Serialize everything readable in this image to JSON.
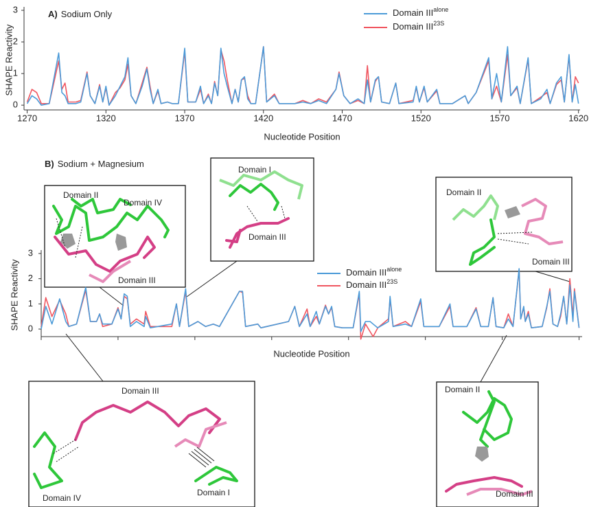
{
  "chart_data": [
    {
      "type": "line",
      "panel": "A)",
      "title": "Sodium Only",
      "x_label": "Nucleotide Position",
      "y_label": "SHAPE Reactivity",
      "xlim": [
        1268,
        1621
      ],
      "xticks": [
        1270,
        1320,
        1370,
        1420,
        1470,
        1520,
        1570,
        1620
      ],
      "xtick_labels": true,
      "ylim": [
        -0.15,
        3
      ],
      "yticks": [
        0,
        1,
        2,
        3
      ],
      "x": [
        1270,
        1273,
        1276,
        1279,
        1284,
        1290,
        1292,
        1294,
        1296,
        1301,
        1304,
        1308,
        1310,
        1313,
        1316,
        1318,
        1320,
        1322,
        1326,
        1329,
        1332,
        1334,
        1336,
        1339,
        1343,
        1346,
        1348,
        1350,
        1353,
        1355,
        1359,
        1362,
        1366,
        1370,
        1372,
        1377,
        1380,
        1382,
        1385,
        1387,
        1389,
        1391,
        1393,
        1395,
        1397,
        1400,
        1402,
        1404,
        1406,
        1408,
        1410,
        1412,
        1415,
        1420,
        1422,
        1427,
        1430,
        1440,
        1445,
        1450,
        1455,
        1460,
        1466,
        1468,
        1471,
        1475,
        1480,
        1484,
        1486,
        1488,
        1491,
        1493,
        1495,
        1500,
        1504,
        1506,
        1515,
        1517,
        1519,
        1522,
        1524,
        1530,
        1532,
        1540,
        1548,
        1550,
        1555,
        1563,
        1565,
        1568,
        1571,
        1575,
        1577,
        1581,
        1583,
        1588,
        1590,
        1596,
        1600,
        1602,
        1606,
        1609,
        1611,
        1614,
        1616,
        1618,
        1620
      ],
      "series": [
        {
          "name": "Domain III",
          "sup": "alone",
          "color": "#4a9ad8",
          "values": [
            0.05,
            0.3,
            0.2,
            0.0,
            0.05,
            1.65,
            0.4,
            0.3,
            0.05,
            0.05,
            0.1,
            1.0,
            0.3,
            0.05,
            0.6,
            0.1,
            0.6,
            0.0,
            0.3,
            0.6,
            0.9,
            1.5,
            0.3,
            0.05,
            0.6,
            1.15,
            0.5,
            0.05,
            0.5,
            0.05,
            0.1,
            0.05,
            0.05,
            1.8,
            0.1,
            0.1,
            0.6,
            0.05,
            0.3,
            0.05,
            0.7,
            0.3,
            1.8,
            1.0,
            0.6,
            0.05,
            0.5,
            0.1,
            0.8,
            0.9,
            0.2,
            0.05,
            0.05,
            1.85,
            0.1,
            0.3,
            0.05,
            0.05,
            0.1,
            0.05,
            0.15,
            0.05,
            0.5,
            1.0,
            0.3,
            0.05,
            0.2,
            0.05,
            0.8,
            0.1,
            0.8,
            0.9,
            0.1,
            0.05,
            0.7,
            0.05,
            0.1,
            0.6,
            0.1,
            0.6,
            0.1,
            0.5,
            0.05,
            0.05,
            0.3,
            0.05,
            0.4,
            1.5,
            0.2,
            1.0,
            0.1,
            1.85,
            0.3,
            0.6,
            0.05,
            1.5,
            0.05,
            0.2,
            0.5,
            0.05,
            0.7,
            0.9,
            0.1,
            1.6,
            0.1,
            0.65,
            0.05
          ]
        },
        {
          "name": "Domain III",
          "sup": "23S",
          "color": "#f0555f",
          "values": [
            0.1,
            0.5,
            0.4,
            0.05,
            0.05,
            1.4,
            0.5,
            0.7,
            0.1,
            0.1,
            0.15,
            1.05,
            0.3,
            0.05,
            0.65,
            0.1,
            0.55,
            0.0,
            0.4,
            0.55,
            0.8,
            1.3,
            0.3,
            0.05,
            0.7,
            1.2,
            0.6,
            0.05,
            0.45,
            0.05,
            0.1,
            0.05,
            0.05,
            1.7,
            0.1,
            0.1,
            0.5,
            0.05,
            0.35,
            0.05,
            0.75,
            0.3,
            1.75,
            1.4,
            0.8,
            0.05,
            0.5,
            0.1,
            0.8,
            0.85,
            0.3,
            0.05,
            0.05,
            1.85,
            0.1,
            0.35,
            0.05,
            0.05,
            0.15,
            0.05,
            0.2,
            0.1,
            0.5,
            1.05,
            0.3,
            0.05,
            0.15,
            0.05,
            1.25,
            0.1,
            0.75,
            0.9,
            0.1,
            0.05,
            0.7,
            0.05,
            0.15,
            0.55,
            0.1,
            0.55,
            0.1,
            0.45,
            0.05,
            0.05,
            0.3,
            0.05,
            0.4,
            1.4,
            0.2,
            0.6,
            0.1,
            1.6,
            0.3,
            0.55,
            0.05,
            1.45,
            0.05,
            0.25,
            0.4,
            0.05,
            0.65,
            0.8,
            0.1,
            1.55,
            0.1,
            0.9,
            0.7
          ]
        }
      ]
    },
    {
      "type": "line",
      "panel": "B)",
      "title": "Sodium + Magnesium",
      "x_label": "Nucleotide Position",
      "y_label": "SHAPE Reactivity",
      "xlim": [
        1270,
        1622
      ],
      "xticks": [
        1270,
        1320,
        1370,
        1420,
        1470,
        1520,
        1570,
        1620
      ],
      "xtick_labels": false,
      "ylim": [
        -0.3,
        3
      ],
      "yticks": [
        0,
        1,
        2,
        3
      ],
      "x": [
        1270,
        1273,
        1277,
        1282,
        1286,
        1288,
        1293,
        1299,
        1302,
        1306,
        1308,
        1310,
        1316,
        1320,
        1322,
        1324,
        1326,
        1328,
        1332,
        1337,
        1338,
        1341,
        1355,
        1358,
        1360,
        1364,
        1366,
        1372,
        1377,
        1382,
        1386,
        1399,
        1401,
        1403,
        1411,
        1413,
        1431,
        1435,
        1438,
        1443,
        1445,
        1449,
        1451,
        1455,
        1457,
        1459,
        1461,
        1466,
        1473,
        1477,
        1478,
        1481,
        1484,
        1486,
        1489,
        1496,
        1497,
        1499,
        1507,
        1511,
        1517,
        1519,
        1529,
        1536,
        1538,
        1547,
        1553,
        1556,
        1561,
        1564,
        1566,
        1571,
        1574,
        1577,
        1581,
        1582,
        1584,
        1585,
        1587,
        1589,
        1596,
        1599,
        1601,
        1603,
        1606,
        1608,
        1610,
        1612,
        1614,
        1616,
        1617,
        1620
      ],
      "series": [
        {
          "name": "Domain III",
          "sup": "alone",
          "color": "#4a9ad8",
          "values": [
            0.0,
            0.9,
            0.2,
            1.2,
            0.3,
            0.1,
            0.2,
            1.65,
            0.3,
            0.3,
            0.6,
            0.2,
            0.2,
            0.8,
            0.4,
            1.4,
            1.3,
            0.1,
            0.3,
            0.1,
            0.5,
            0.05,
            0.2,
            1.0,
            0.1,
            1.6,
            0.1,
            0.3,
            0.1,
            0.2,
            0.1,
            1.5,
            1.5,
            0.1,
            0.2,
            0.05,
            0.3,
            0.9,
            0.1,
            0.6,
            0.1,
            0.7,
            0.2,
            0.9,
            0.6,
            0.9,
            0.1,
            0.05,
            0.05,
            1.5,
            -0.1,
            0.3,
            0.3,
            0.2,
            0.05,
            0.3,
            1.3,
            0.1,
            0.2,
            0.1,
            1.2,
            0.1,
            0.1,
            1.0,
            0.1,
            0.1,
            0.8,
            0.1,
            0.1,
            1.25,
            0.1,
            0.05,
            0.4,
            0.1,
            2.4,
            0.4,
            0.9,
            0.3,
            0.6,
            0.05,
            0.1,
            0.9,
            1.5,
            0.2,
            0.1,
            0.6,
            1.3,
            0.2,
            1.75,
            0.3,
            1.5,
            0.05
          ]
        },
        {
          "name": "Domain III",
          "sup": "23S",
          "color": "#f0555f",
          "values": [
            0.1,
            1.25,
            0.5,
            1.15,
            0.6,
            0.1,
            0.2,
            1.55,
            0.3,
            0.3,
            0.6,
            0.1,
            0.2,
            0.85,
            0.4,
            1.3,
            1.2,
            0.2,
            0.4,
            0.2,
            0.7,
            0.1,
            0.1,
            1.0,
            0.1,
            1.5,
            0.1,
            0.3,
            0.1,
            0.2,
            0.1,
            1.5,
            1.45,
            0.1,
            0.2,
            0.05,
            0.3,
            0.9,
            0.1,
            0.8,
            0.1,
            0.5,
            0.2,
            0.95,
            0.6,
            0.85,
            0.1,
            0.05,
            0.05,
            1.4,
            -0.4,
            0.2,
            -0.1,
            -0.3,
            0.05,
            0.4,
            1.2,
            0.1,
            0.3,
            0.1,
            1.1,
            0.1,
            0.1,
            0.9,
            0.1,
            0.1,
            0.85,
            0.1,
            0.1,
            1.25,
            0.1,
            0.05,
            0.6,
            0.1,
            2.35,
            0.4,
            0.85,
            0.3,
            0.7,
            0.05,
            0.1,
            0.85,
            1.6,
            0.2,
            0.1,
            0.5,
            1.3,
            0.2,
            2.0,
            0.5,
            1.6,
            0.05
          ]
        }
      ]
    }
  ],
  "insets": [
    {
      "labels": [
        "Domain II",
        "Domain IV",
        "Domain III"
      ]
    },
    {
      "labels": [
        "Domain I",
        "Domain III"
      ]
    },
    {
      "labels": [
        "Domain II",
        "Domain III"
      ]
    },
    {
      "labels": [
        "Domain III",
        "Domain IV",
        "Domain I"
      ]
    },
    {
      "labels": [
        "Domain II",
        "Domain III"
      ]
    }
  ]
}
